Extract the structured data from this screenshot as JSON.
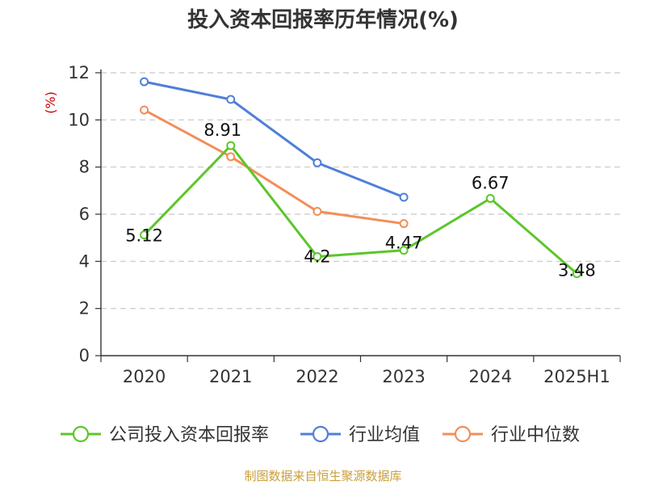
{
  "chart_data": {
    "type": "line",
    "title": "投入资本回报率历年情况(%)",
    "ylabel": "(%)",
    "categories": [
      "2020",
      "2021",
      "2022",
      "2023",
      "2024",
      "2025H1"
    ],
    "ylim": [
      0,
      12
    ],
    "yticks": [
      0,
      2,
      4,
      6,
      8,
      10,
      12
    ],
    "grid": true,
    "legend_position": "bottom",
    "series": [
      {
        "name": "公司投入资本回报率",
        "color": "#5cc62a",
        "values": [
          5.12,
          8.91,
          4.2,
          4.47,
          6.67,
          3.48
        ],
        "labels": [
          "5.12",
          "8.91",
          "4.2",
          "4.47",
          "6.67",
          "3.48"
        ]
      },
      {
        "name": "行业均值",
        "color": "#4f7fd8",
        "values": [
          11.62,
          10.87,
          8.18,
          6.72,
          null,
          null
        ]
      },
      {
        "name": "行业中位数",
        "color": "#f28e5a",
        "values": [
          10.42,
          8.44,
          6.12,
          5.6,
          null,
          null
        ]
      }
    ],
    "source": "制图数据来自恒生聚源数据库"
  }
}
